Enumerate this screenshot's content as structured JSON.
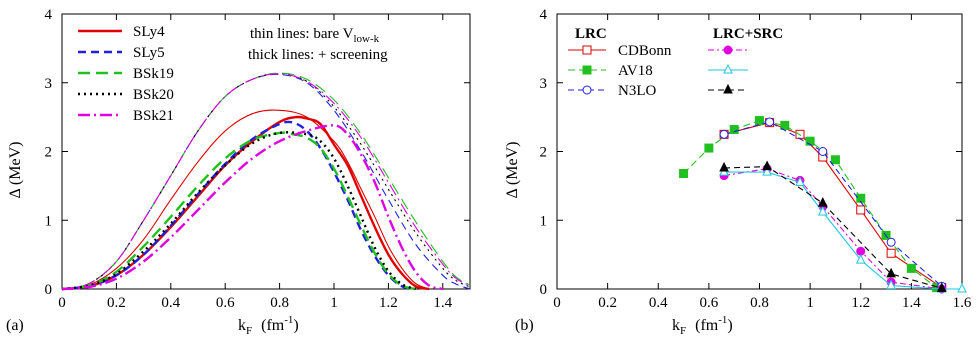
{
  "chart_data": [
    {
      "type": "line",
      "panel_label": "(a)",
      "xlabel_main": "k",
      "xlabel_sub": "F",
      "xlabel_unit": "(fm",
      "xlabel_unit_sup": "-1",
      "xlabel_unit_close": ")",
      "ylabel": "Δ  (MeV)",
      "xlim": [
        0,
        1.5
      ],
      "ylim": [
        0,
        4
      ],
      "xticks": [
        "0",
        "0.2",
        "0.4",
        "0.6",
        "0.8",
        "1",
        "1.2",
        "1.4"
      ],
      "xtick_values": [
        0,
        0.2,
        0.4,
        0.6,
        0.8,
        1.0,
        1.2,
        1.4
      ],
      "yticks": [
        "0",
        "1",
        "2",
        "3",
        "4"
      ],
      "ytick_values": [
        0,
        1,
        2,
        3,
        4
      ],
      "grid": false,
      "legend_position": "top-left",
      "note_line1": "thin lines:   bare V",
      "note_line1_sub": "low-k",
      "note_line2": "thick lines:  + screening",
      "series": [
        {
          "name": "SLy4",
          "color": "#e00000",
          "dash": "solid",
          "thick": {
            "x": [
              0,
              0.1,
              0.2,
              0.3,
              0.4,
              0.5,
              0.6,
              0.7,
              0.8,
              0.86,
              0.9,
              0.95,
              1.0,
              1.05,
              1.1,
              1.15,
              1.2,
              1.25,
              1.3,
              1.35
            ],
            "y": [
              0,
              0.04,
              0.2,
              0.5,
              0.9,
              1.35,
              1.8,
              2.15,
              2.43,
              2.5,
              2.48,
              2.4,
              2.1,
              1.8,
              1.35,
              0.9,
              0.5,
              0.22,
              0.04,
              0
            ]
          },
          "thin": {
            "x": [
              0,
              0.1,
              0.2,
              0.3,
              0.4,
              0.5,
              0.6,
              0.7,
              0.8,
              0.9,
              1.0,
              1.05,
              1.1,
              1.15,
              1.2,
              1.25,
              1.3,
              1.35
            ],
            "y": [
              0,
              0.06,
              0.3,
              0.72,
              1.3,
              1.85,
              2.3,
              2.55,
              2.6,
              2.5,
              2.15,
              1.85,
              1.45,
              1.05,
              0.62,
              0.3,
              0.08,
              0
            ]
          }
        },
        {
          "name": "SLy5",
          "color": "#2020e0",
          "dash": "8,5",
          "thick": {
            "x": [
              0,
              0.1,
              0.2,
              0.3,
              0.4,
              0.5,
              0.6,
              0.7,
              0.8,
              0.85,
              0.9,
              0.95,
              1.0,
              1.05,
              1.1,
              1.15,
              1.2,
              1.25,
              1.3
            ],
            "y": [
              0,
              0.04,
              0.2,
              0.5,
              0.92,
              1.38,
              1.82,
              2.18,
              2.4,
              2.42,
              2.3,
              2.05,
              1.7,
              1.3,
              0.85,
              0.48,
              0.2,
              0.04,
              0
            ]
          },
          "thin": {
            "x": [
              0,
              0.1,
              0.2,
              0.3,
              0.4,
              0.5,
              0.6,
              0.7,
              0.8,
              0.9,
              1.0,
              1.1,
              1.2,
              1.3,
              1.4,
              1.45,
              1.5
            ],
            "y": [
              0,
              0.08,
              0.4,
              1.0,
              1.65,
              2.3,
              2.8,
              3.05,
              3.12,
              3.0,
              2.6,
              2.0,
              1.3,
              0.65,
              0.2,
              0.07,
              0
            ]
          }
        },
        {
          "name": "BSk19",
          "color": "#20c020",
          "dash": "12,6",
          "thick": {
            "x": [
              0,
              0.1,
              0.2,
              0.3,
              0.4,
              0.5,
              0.6,
              0.7,
              0.8,
              0.85,
              0.9,
              0.95,
              1.0,
              1.05,
              1.1,
              1.15,
              1.2,
              1.25,
              1.3
            ],
            "y": [
              0,
              0.05,
              0.25,
              0.62,
              1.05,
              1.5,
              1.9,
              2.17,
              2.27,
              2.25,
              2.2,
              2.05,
              1.75,
              1.35,
              0.92,
              0.52,
              0.22,
              0.05,
              0
            ]
          },
          "thin": {
            "x": [
              0,
              0.1,
              0.2,
              0.3,
              0.4,
              0.5,
              0.6,
              0.7,
              0.8,
              0.9,
              1.0,
              1.1,
              1.2,
              1.3,
              1.4,
              1.45,
              1.5
            ],
            "y": [
              0,
              0.08,
              0.4,
              1.0,
              1.65,
              2.3,
              2.8,
              3.05,
              3.14,
              3.05,
              2.75,
              2.25,
              1.62,
              0.98,
              0.4,
              0.17,
              0.06
            ]
          }
        },
        {
          "name": "BSk20",
          "color": "#000000",
          "dash": "2,4",
          "thick": {
            "x": [
              0,
              0.1,
              0.2,
              0.3,
              0.4,
              0.5,
              0.6,
              0.7,
              0.8,
              0.9,
              0.95,
              1.0,
              1.05,
              1.1,
              1.15,
              1.2,
              1.25,
              1.3
            ],
            "y": [
              0,
              0.05,
              0.22,
              0.55,
              0.95,
              1.4,
              1.8,
              2.12,
              2.27,
              2.25,
              2.15,
              1.9,
              1.5,
              1.05,
              0.6,
              0.26,
              0.07,
              0
            ]
          },
          "thin": {
            "x": [
              0,
              0.1,
              0.2,
              0.3,
              0.4,
              0.5,
              0.6,
              0.7,
              0.8,
              0.9,
              1.0,
              1.1,
              1.2,
              1.3,
              1.4,
              1.45,
              1.5
            ],
            "y": [
              0,
              0.08,
              0.4,
              1.0,
              1.65,
              2.3,
              2.8,
              3.05,
              3.13,
              3.02,
              2.65,
              2.1,
              1.45,
              0.82,
              0.3,
              0.12,
              0.03
            ]
          }
        },
        {
          "name": "BSk21",
          "color": "#e000e0",
          "dash": "12,4,2,4",
          "thick": {
            "x": [
              0,
              0.1,
              0.2,
              0.3,
              0.4,
              0.5,
              0.6,
              0.7,
              0.8,
              0.9,
              1.0,
              1.05,
              1.1,
              1.15,
              1.2,
              1.25,
              1.3,
              1.35,
              1.4
            ],
            "y": [
              0,
              0.03,
              0.15,
              0.4,
              0.75,
              1.15,
              1.55,
              1.9,
              2.15,
              2.3,
              2.38,
              2.25,
              1.95,
              1.55,
              1.05,
              0.6,
              0.25,
              0.05,
              0
            ]
          },
          "thin": {
            "x": [
              0,
              0.1,
              0.2,
              0.3,
              0.4,
              0.5,
              0.6,
              0.7,
              0.8,
              0.9,
              1.0,
              1.1,
              1.2,
              1.3,
              1.4,
              1.45,
              1.5
            ],
            "y": [
              0,
              0.08,
              0.4,
              1.0,
              1.65,
              2.3,
              2.8,
              3.05,
              3.13,
              3.02,
              2.7,
              2.2,
              1.55,
              0.9,
              0.36,
              0.15,
              0.05
            ]
          }
        }
      ]
    },
    {
      "type": "line",
      "panel_label": "(b)",
      "xlabel_main": "k",
      "xlabel_sub": "F",
      "xlabel_unit": "(fm",
      "xlabel_unit_sup": "-1",
      "xlabel_unit_close": ")",
      "ylabel": "Δ  (MeV)",
      "xlim": [
        0,
        1.6
      ],
      "ylim": [
        0,
        4
      ],
      "xticks": [
        "0",
        "0.2",
        "0.4",
        "0.6",
        "0.8",
        "1",
        "1.2",
        "1.4",
        "1.6"
      ],
      "xtick_values": [
        0,
        0.2,
        0.4,
        0.6,
        0.8,
        1.0,
        1.2,
        1.4,
        1.6
      ],
      "yticks": [
        "0",
        "1",
        "2",
        "3",
        "4"
      ],
      "ytick_values": [
        0,
        1,
        2,
        3,
        4
      ],
      "grid": false,
      "legend_position": "top-left",
      "legend_header_1": "LRC",
      "legend_header_2": "LRC+SRC",
      "series": [
        {
          "name": "CDBonn",
          "group": "LRC",
          "color": "#e00000",
          "dash": "solid",
          "marker": "square-open",
          "x": [
            0.66,
            0.84,
            0.96,
            1.05,
            1.2,
            1.32,
            1.52
          ],
          "y": [
            2.25,
            2.42,
            2.25,
            1.92,
            1.15,
            0.52,
            0.02
          ]
        },
        {
          "name": "AV18",
          "group": "LRC",
          "color": "#20c020",
          "dash": "7,4",
          "marker": "square-filled",
          "x": [
            0.5,
            0.6,
            0.7,
            0.8,
            0.9,
            1.0,
            1.1,
            1.2,
            1.3,
            1.4,
            1.5
          ],
          "y": [
            1.68,
            2.05,
            2.32,
            2.45,
            2.38,
            2.15,
            1.88,
            1.32,
            0.78,
            0.3,
            0.02
          ]
        },
        {
          "name": "N3LO",
          "group": "LRC",
          "color": "#2020e0",
          "dash": "6,4",
          "marker": "circle-open",
          "x": [
            0.66,
            0.84,
            1.05,
            1.32,
            1.52
          ],
          "y": [
            2.25,
            2.43,
            2.0,
            0.68,
            0.04
          ]
        },
        {
          "name": "",
          "group": "LRC+SRC",
          "color": "#e000e0",
          "dash": "6,3,2,3",
          "marker": "circle-filled",
          "x": [
            0.66,
            0.83,
            0.96,
            1.05,
            1.2,
            1.32,
            1.52
          ],
          "y": [
            1.65,
            1.75,
            1.58,
            1.2,
            0.55,
            0.1,
            0.0
          ]
        },
        {
          "name": "",
          "group": "LRC+SRC",
          "color": "#20c8e0",
          "dash": "solid",
          "marker": "triangle-open",
          "x": [
            0.66,
            0.83,
            0.96,
            1.05,
            1.2,
            1.32,
            1.52,
            1.6
          ],
          "y": [
            1.7,
            1.7,
            1.55,
            1.12,
            0.42,
            0.05,
            0.0,
            0.0
          ]
        },
        {
          "name": "",
          "group": "LRC+SRC",
          "color": "#000000",
          "dash": "6,4",
          "marker": "triangle-filled",
          "x": [
            0.66,
            0.83,
            1.05,
            1.32,
            1.52
          ],
          "y": [
            1.76,
            1.78,
            1.25,
            0.22,
            0.01
          ]
        }
      ]
    }
  ]
}
